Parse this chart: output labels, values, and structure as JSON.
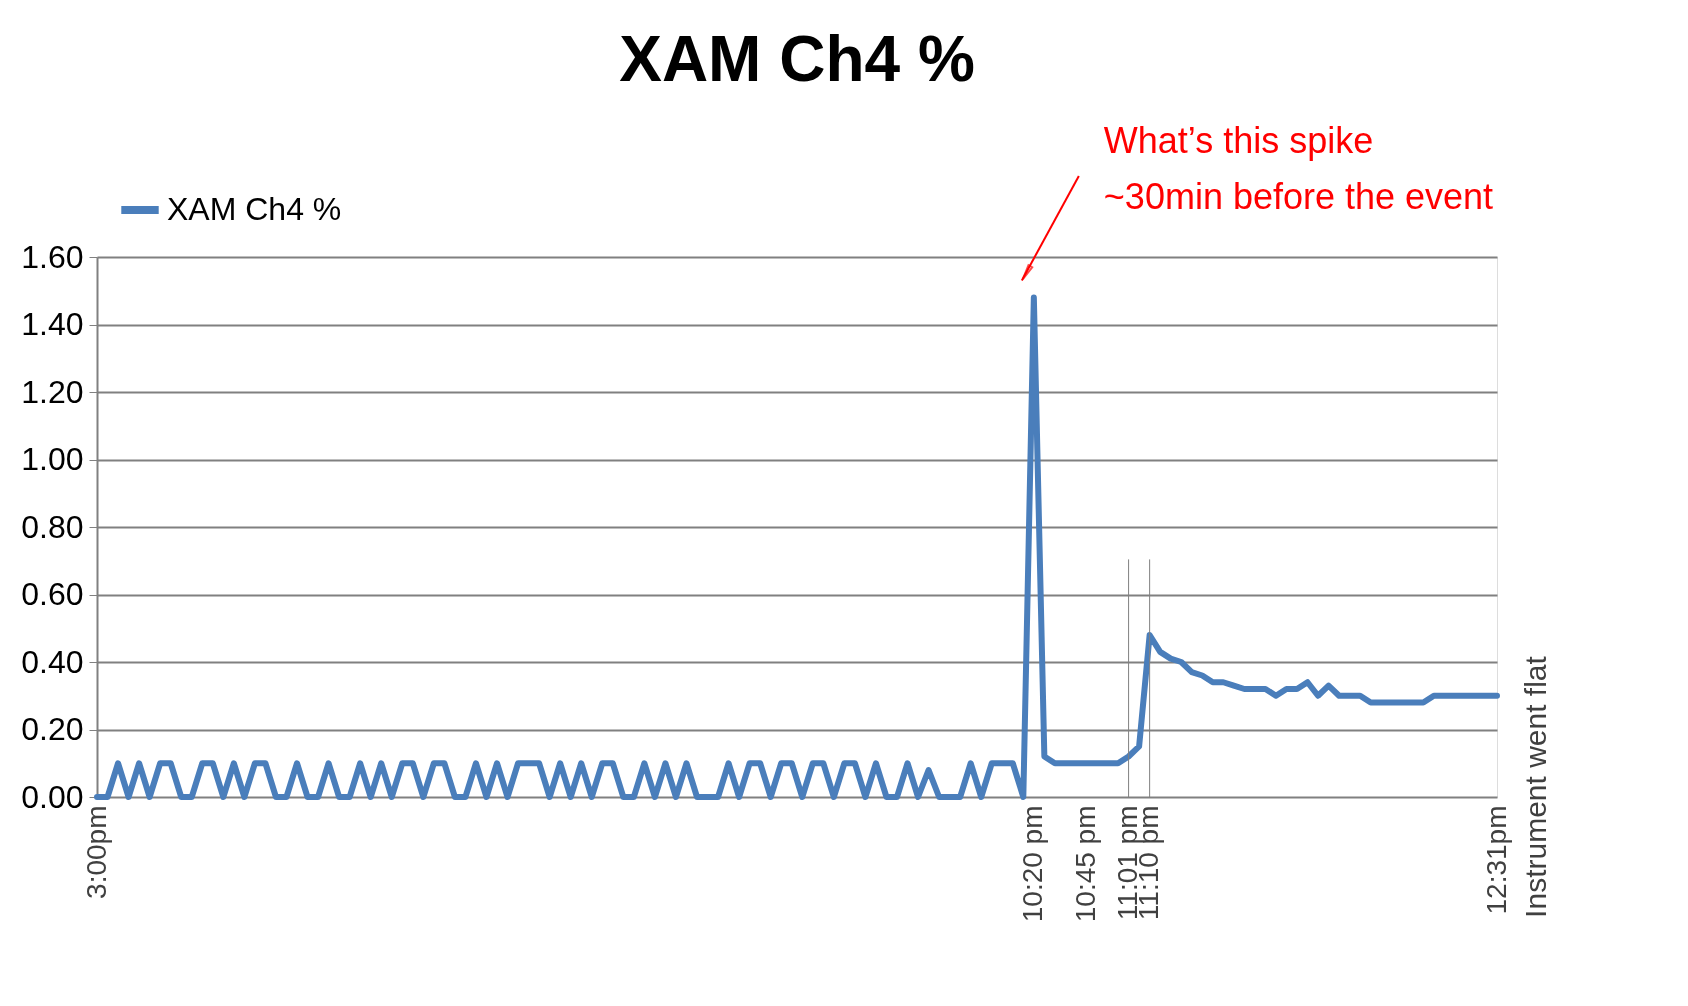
{
  "chart_data": {
    "type": "line",
    "title": "XAM Ch4 %",
    "categories": [
      "3:00pm",
      null,
      null,
      null,
      null,
      null,
      null,
      null,
      null,
      null,
      null,
      null,
      null,
      null,
      null,
      null,
      null,
      null,
      null,
      null,
      null,
      null,
      null,
      null,
      null,
      null,
      null,
      null,
      null,
      null,
      null,
      null,
      null,
      null,
      null,
      null,
      null,
      null,
      null,
      null,
      null,
      null,
      null,
      null,
      null,
      null,
      null,
      null,
      null,
      null,
      null,
      null,
      null,
      null,
      null,
      null,
      null,
      null,
      null,
      null,
      null,
      null,
      null,
      null,
      null,
      null,
      null,
      null,
      null,
      null,
      null,
      null,
      null,
      null,
      null,
      null,
      null,
      null,
      null,
      null,
      null,
      null,
      null,
      null,
      null,
      null,
      null,
      null,
      null,
      "10:20 pm",
      null,
      null,
      null,
      null,
      "10:45 pm",
      null,
      null,
      null,
      "11:01 pm",
      null,
      "11:10 pm",
      null,
      null,
      null,
      null,
      null,
      null,
      null,
      null,
      null,
      null,
      null,
      null,
      null,
      null,
      null,
      null,
      null,
      null,
      null,
      null,
      null,
      null,
      null,
      null,
      null,
      null,
      null,
      null,
      null,
      null,
      null,
      null,
      "12:31pm"
    ],
    "series": [
      {
        "name": "XAM Ch4 %",
        "color": "#4a7ebb",
        "values": [
          0,
          0,
          0.1,
          0,
          0.1,
          0,
          0.1,
          0.1,
          0,
          0,
          0.1,
          0.1,
          0,
          0.1,
          0,
          0.1,
          0.1,
          0,
          0,
          0.1,
          0,
          0,
          0.1,
          0,
          0,
          0.1,
          0,
          0.1,
          0,
          0.1,
          0.1,
          0,
          0.1,
          0.1,
          0,
          0,
          0.1,
          0,
          0.1,
          0,
          0.1,
          0.1,
          0.1,
          0,
          0.1,
          0,
          0.1,
          0,
          0.1,
          0.1,
          0,
          0,
          0.1,
          0,
          0.1,
          0,
          0.1,
          0,
          0,
          0,
          0.1,
          0,
          0.1,
          0.1,
          0,
          0.1,
          0.1,
          0,
          0.1,
          0.1,
          0,
          0.1,
          0.1,
          0,
          0.1,
          0,
          0,
          0.1,
          0,
          0.08,
          0,
          0,
          0,
          0.1,
          0,
          0.1,
          0.1,
          0.1,
          0,
          1.48,
          0.12,
          0.1,
          0.1,
          0.1,
          0.1,
          0.1,
          0.1,
          0.1,
          0.12,
          0.15,
          0.48,
          0.43,
          0.41,
          0.4,
          0.37,
          0.36,
          0.34,
          0.34,
          0.33,
          0.32,
          0.32,
          0.32,
          0.3,
          0.32,
          0.32,
          0.34,
          0.3,
          0.33,
          0.3,
          0.3,
          0.3,
          0.28,
          0.28,
          0.28,
          0.28,
          0.28,
          0.28,
          0.3,
          0.3,
          0.3,
          0.3,
          0.3,
          0.3,
          0.3
        ]
      }
    ],
    "ylim": [
      0,
      1.6
    ],
    "yticks": [
      {
        "value": 0,
        "label": "0.00"
      },
      {
        "value": 0.2,
        "label": "0.20"
      },
      {
        "value": 0.4,
        "label": "0.40"
      },
      {
        "value": 0.6,
        "label": "0.60"
      },
      {
        "value": 0.8,
        "label": "0.80"
      },
      {
        "value": 1,
        "label": "1.00"
      },
      {
        "value": 1.2,
        "label": "1.20"
      },
      {
        "value": 1.4,
        "label": "1.40"
      },
      {
        "value": 1.6,
        "label": "1.60"
      }
    ],
    "ref_lines": [
      {
        "axis": "x",
        "value": "11:01 pm",
        "color": "#808080"
      },
      {
        "axis": "x",
        "value": "11:10 pm",
        "color": "#808080"
      }
    ],
    "annotations": [
      {
        "text": "What’s this spike\n~30min before the event",
        "x": "10:20 pm",
        "y": 1.48
      },
      "Instrument went flat"
    ],
    "grid": "y",
    "legend": "top left",
    "line_style": "solid",
    "marker": "none"
  }
}
